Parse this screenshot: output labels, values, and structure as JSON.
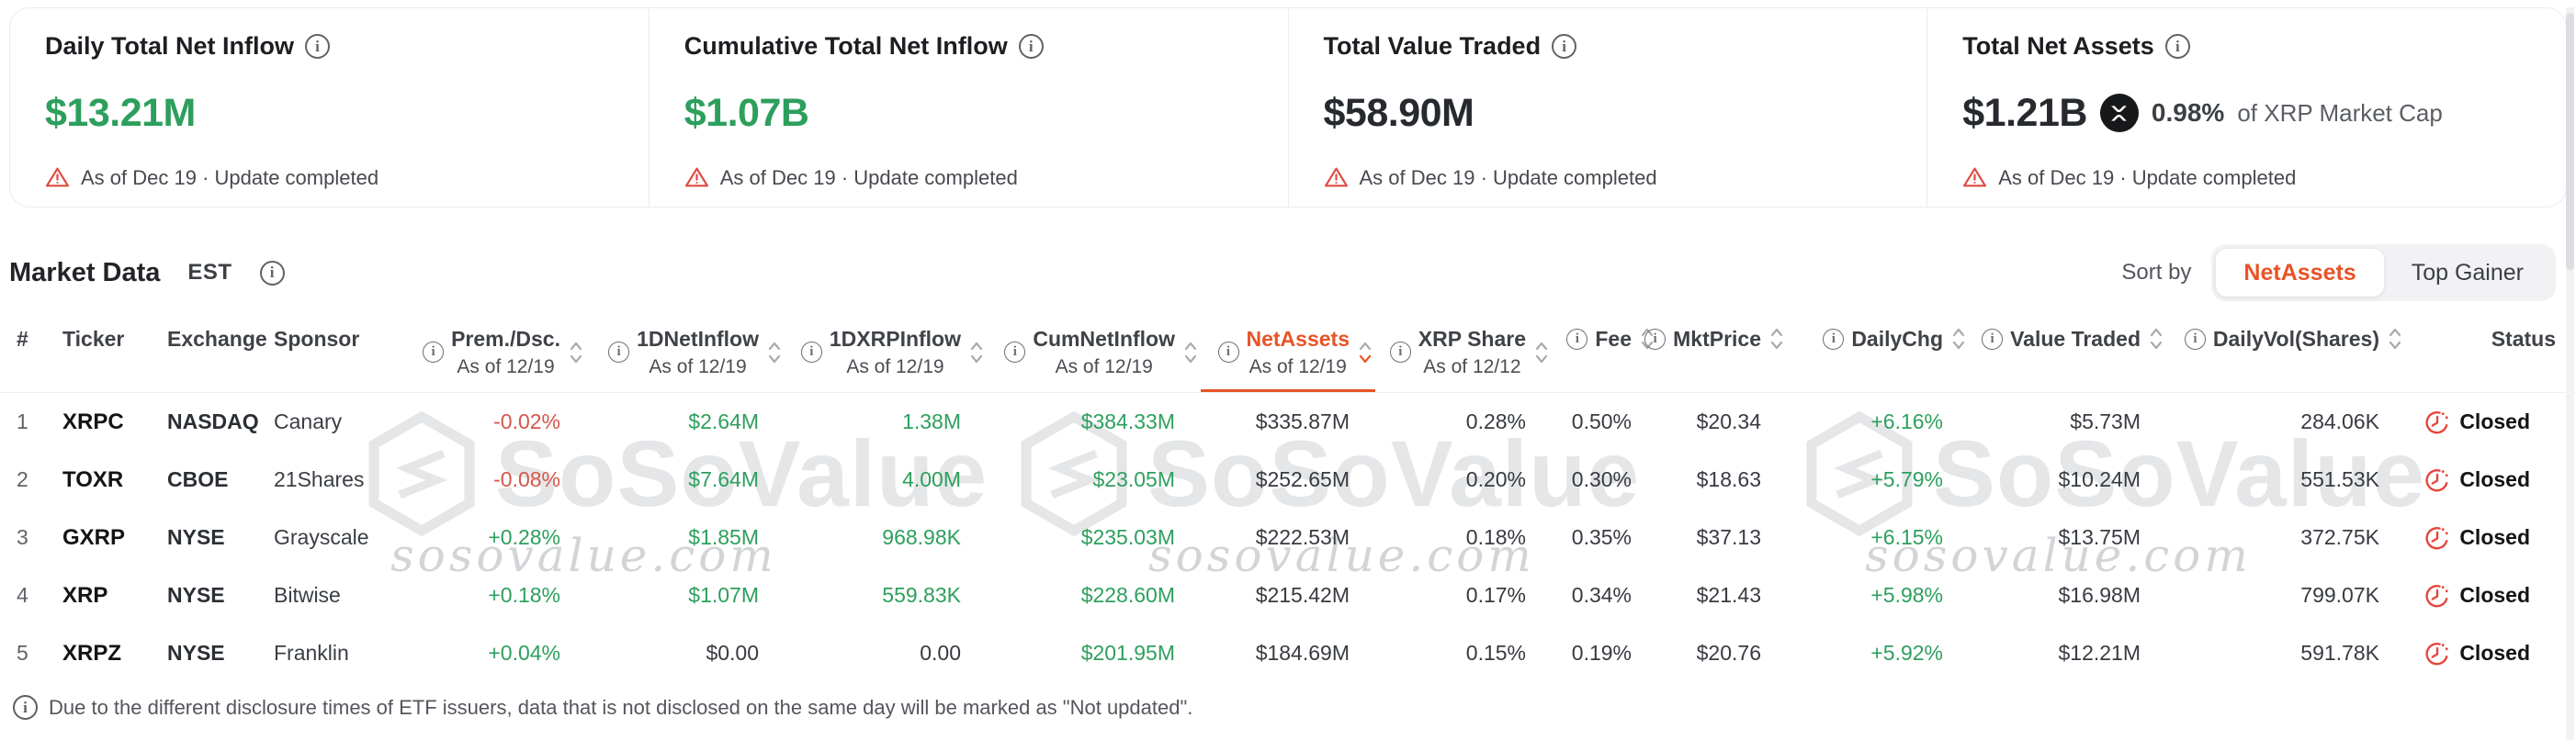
{
  "colors": {
    "green": "#2d9f5d",
    "red": "#d6564b",
    "accent_orange": "#e75427",
    "status_red": "#e4473c",
    "warning_red": "#dd4b42"
  },
  "stat_cards": [
    {
      "title": "Daily Total Net Inflow",
      "value": "$13.21M",
      "value_color": "green",
      "note": "As of Dec 19 · Update completed"
    },
    {
      "title": "Cumulative Total Net Inflow",
      "value": "$1.07B",
      "value_color": "green",
      "note": "As of Dec 19 · Update completed"
    },
    {
      "title": "Total Value Traded",
      "value": "$58.90M",
      "value_color": "dark",
      "note": "As of Dec 19 · Update completed"
    },
    {
      "title": "Total Net Assets",
      "value": "$1.21B",
      "value_color": "dark",
      "pct_of_market_cap": "0.98%",
      "pct_suffix": "of XRP Market Cap",
      "note": "As of Dec 19 · Update completed"
    }
  ],
  "market_bar": {
    "title": "Market Data",
    "timezone": "EST",
    "sort_by_label": "Sort by",
    "sort_options": [
      {
        "label": "NetAssets",
        "active": true
      },
      {
        "label": "Top Gainer",
        "active": false
      }
    ]
  },
  "watermark": {
    "brand": "SoSoValue",
    "domain": "sosovalue.com"
  },
  "table": {
    "columns": [
      {
        "key": "rank",
        "label": "#",
        "align": "left"
      },
      {
        "key": "ticker",
        "label": "Ticker",
        "align": "left"
      },
      {
        "key": "exchange",
        "label": "Exchange",
        "align": "left"
      },
      {
        "key": "sponsor",
        "label": "Sponsor",
        "align": "left"
      },
      {
        "key": "prem",
        "label": "Prem./Dsc.",
        "as_of": "As of 12/19",
        "info": true,
        "sort": true
      },
      {
        "key": "dnet",
        "label": "1DNetInflow",
        "as_of": "As of 12/19",
        "info": true,
        "sort": true
      },
      {
        "key": "dxrp",
        "label": "1DXRPInflow",
        "as_of": "As of 12/19",
        "info": true,
        "sort": true
      },
      {
        "key": "cum",
        "label": "CumNetInflow",
        "as_of": "As of 12/19",
        "info": true,
        "sort": true
      },
      {
        "key": "net",
        "label": "NetAssets",
        "as_of": "As of 12/19",
        "info": true,
        "sort": true,
        "active": true
      },
      {
        "key": "xrps",
        "label": "XRP Share",
        "as_of": "As of 12/12",
        "info": true,
        "sort": true
      },
      {
        "key": "fee",
        "label": "Fee",
        "info": true,
        "sort": true
      },
      {
        "key": "mkt",
        "label": "MktPrice",
        "info": true,
        "sort": true
      },
      {
        "key": "chg",
        "label": "DailyChg",
        "info": true,
        "sort": true
      },
      {
        "key": "vt",
        "label": "Value Traded",
        "info": true,
        "sort": true
      },
      {
        "key": "dvol",
        "label": "DailyVol(Shares)",
        "info": true,
        "sort": true
      },
      {
        "key": "status",
        "label": "Status",
        "align": "right"
      }
    ],
    "rows": [
      {
        "rank": "1",
        "ticker": "XRPC",
        "exchange": "NASDAQ",
        "sponsor": "Canary",
        "prem": {
          "text": "-0.02%",
          "color": "red"
        },
        "dnet": {
          "text": "$2.64M",
          "color": "green"
        },
        "dxrp": {
          "text": "1.38M",
          "color": "green"
        },
        "cum": {
          "text": "$384.33M",
          "color": "green"
        },
        "net": "$335.87M",
        "xrps": "0.28%",
        "fee": "0.50%",
        "mkt": "$20.34",
        "chg": {
          "text": "+6.16%",
          "color": "green"
        },
        "vt": "$5.73M",
        "dvol": "284.06K",
        "status": "Closed"
      },
      {
        "rank": "2",
        "ticker": "TOXR",
        "exchange": "CBOE",
        "sponsor": "21Shares",
        "prem": {
          "text": "-0.08%",
          "color": "red"
        },
        "dnet": {
          "text": "$7.64M",
          "color": "green"
        },
        "dxrp": {
          "text": "4.00M",
          "color": "green"
        },
        "cum": {
          "text": "$23.05M",
          "color": "green"
        },
        "net": "$252.65M",
        "xrps": "0.20%",
        "fee": "0.30%",
        "mkt": "$18.63",
        "chg": {
          "text": "+5.79%",
          "color": "green"
        },
        "vt": "$10.24M",
        "dvol": "551.53K",
        "status": "Closed"
      },
      {
        "rank": "3",
        "ticker": "GXRP",
        "exchange": "NYSE",
        "sponsor": "Grayscale",
        "prem": {
          "text": "+0.28%",
          "color": "green"
        },
        "dnet": {
          "text": "$1.85M",
          "color": "green"
        },
        "dxrp": {
          "text": "968.98K",
          "color": "green"
        },
        "cum": {
          "text": "$235.03M",
          "color": "green"
        },
        "net": "$222.53M",
        "xrps": "0.18%",
        "fee": "0.35%",
        "mkt": "$37.13",
        "chg": {
          "text": "+6.15%",
          "color": "green"
        },
        "vt": "$13.75M",
        "dvol": "372.75K",
        "status": "Closed"
      },
      {
        "rank": "4",
        "ticker": "XRP",
        "exchange": "NYSE",
        "sponsor": "Bitwise",
        "prem": {
          "text": "+0.18%",
          "color": "green"
        },
        "dnet": {
          "text": "$1.07M",
          "color": "green"
        },
        "dxrp": {
          "text": "559.83K",
          "color": "green"
        },
        "cum": {
          "text": "$228.60M",
          "color": "green"
        },
        "net": "$215.42M",
        "xrps": "0.17%",
        "fee": "0.34%",
        "mkt": "$21.43",
        "chg": {
          "text": "+5.98%",
          "color": "green"
        },
        "vt": "$16.98M",
        "dvol": "799.07K",
        "status": "Closed"
      },
      {
        "rank": "5",
        "ticker": "XRPZ",
        "exchange": "NYSE",
        "sponsor": "Franklin",
        "prem": {
          "text": "+0.04%",
          "color": "green"
        },
        "dnet": "$0.00",
        "dxrp": "0.00",
        "cum": {
          "text": "$201.95M",
          "color": "green"
        },
        "net": "$184.69M",
        "xrps": "0.15%",
        "fee": "0.19%",
        "mkt": "$20.76",
        "chg": {
          "text": "+5.92%",
          "color": "green"
        },
        "vt": "$12.21M",
        "dvol": "591.78K",
        "status": "Closed"
      }
    ],
    "note": "Due to the different disclosure times of ETF issuers, data that is not disclosed on the same day will be marked as \"Not updated\"."
  }
}
